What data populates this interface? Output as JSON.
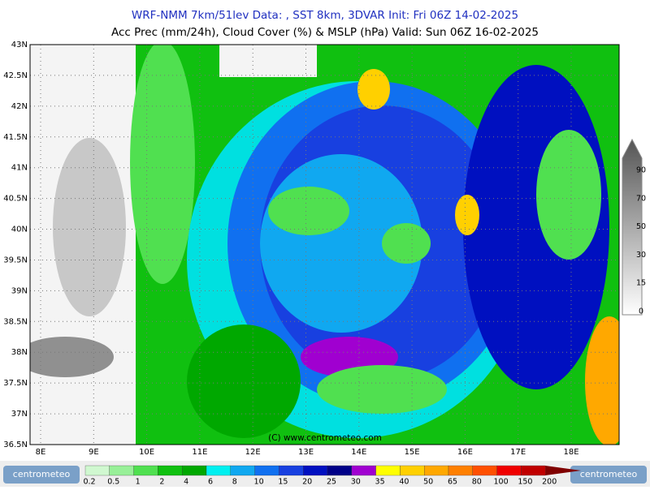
{
  "header": {
    "line1": "WRF-NMM 7km/51lev  Data: , SST 8km, 3DVAR  Init: Fri 06Z 14-02-2025",
    "line2": "Acc Prec (mm/24h), Cloud Cover (%) & MSLP (hPa)  Valid: Sun 06Z 16-02-2025"
  },
  "map": {
    "lat_labels": [
      "43N",
      "42.5N",
      "42N",
      "41.5N",
      "41N",
      "40.5N",
      "40N",
      "39.5N",
      "39N",
      "38.5N",
      "38N",
      "37.5N",
      "37N",
      "36.5N"
    ],
    "lon_labels": [
      "8E",
      "9E",
      "10E",
      "11E",
      "12E",
      "13E",
      "14E",
      "15E",
      "16E",
      "17E",
      "18E"
    ],
    "copyright": "(C) www.centrometeo.com"
  },
  "cloud_scale": {
    "labels": [
      "90",
      "70",
      "50",
      "30",
      "15",
      "0"
    ]
  },
  "precip_scale": {
    "labels": [
      "0.2",
      "0.5",
      "1",
      "2",
      "4",
      "6",
      "8",
      "10",
      "15",
      "20",
      "25",
      "30",
      "35",
      "40",
      "50",
      "65",
      "80",
      "100",
      "150",
      "200"
    ],
    "colors": [
      "#d0f8d0",
      "#98f098",
      "#50e050",
      "#10c010",
      "#00a800",
      "#00f0f0",
      "#10a8f0",
      "#1070f0",
      "#1840e0",
      "#0010c0",
      "#000088",
      "#a000d0",
      "#ffff00",
      "#ffd000",
      "#ffa800",
      "#ff8000",
      "#ff5000",
      "#f00000",
      "#c00000",
      "#800000"
    ]
  },
  "logo": {
    "left": "centrometeo",
    "right": "centrometeo"
  }
}
